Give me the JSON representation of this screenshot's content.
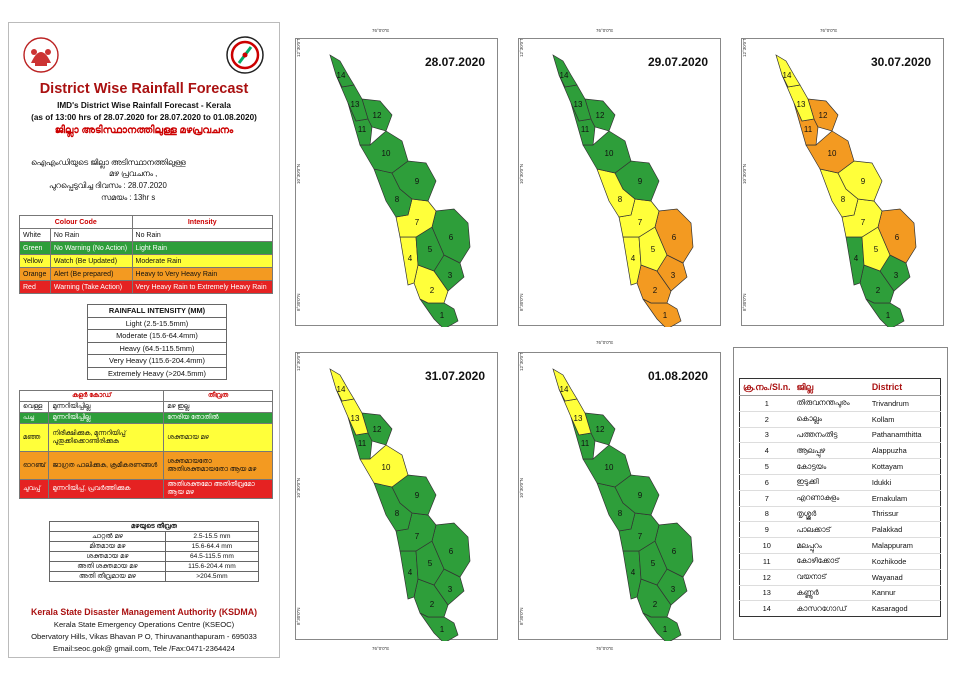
{
  "header": {
    "title": "District Wise Rainfall Forecast",
    "subtitle": "IMD's District Wise Rainfall Forecast - Kerala",
    "period": "(as of 13:00 hrs of 28.07.2020 for 28.07.2020  to 01.08.2020)",
    "mal_title": "ജില്ലാ അടിസ്ഥാനത്തിലുള്ള മഴപ്രവചനം",
    "mal_line1": "ഐഎംഡിയുടെ ജില്ലാ     അടിസ്ഥാനത്തിലുള്ള",
    "mal_line2": "മഴ പ്രവചനം  ,",
    "mal_line3": "പുറപ്പെടുവിച്ച          ദിവസം : 28.07.2020",
    "mal_line4": "സമയം : 13hr s"
  },
  "colour_code": {
    "headers": [
      "Colour Code",
      "Intensity"
    ],
    "rows": [
      {
        "colour": "White",
        "meaning": "No Rain",
        "intensity": "No Rain",
        "hex": "#ffffff"
      },
      {
        "colour": "Green",
        "meaning": "No Warning (No Action)",
        "intensity": "Light Rain",
        "hex": "#2e9e3a"
      },
      {
        "colour": "Yellow",
        "meaning": "Watch (Be Updated)",
        "intensity": "Moderate Rain",
        "hex": "#ffff3a"
      },
      {
        "colour": "Orange",
        "meaning": "Alert (Be prepared)",
        "intensity": "Heavy to Very Heavy Rain",
        "hex": "#f39a21"
      },
      {
        "colour": "Red",
        "meaning": "Warning (Take Action)",
        "intensity": "Very Heavy Rain to Extremely Heavy Rain",
        "hex": "#e52222"
      }
    ]
  },
  "rainfall_intensity": {
    "title": "RAINFALL INTENSITY (MM)",
    "rows": [
      "Light (2.5-15.5mm)",
      "Moderate (15.6-64.4mm)",
      "Heavy (64.5-115.5mm)",
      "Very Heavy (115.6-204.4mm)",
      "Extremely Heavy (>204.5mm)"
    ]
  },
  "mal_colour_code": {
    "headers": [
      "കളർ കോഡ്",
      "തീവ്രത"
    ],
    "rows": [
      {
        "c1": "വെള്ള",
        "c2": "മുന്നറിയിപ്പില്ല",
        "c3": "മഴ ഇല്ല"
      },
      {
        "c1": "പച്ച",
        "c2": "മുന്നറിയിപ്പില്ല",
        "c3": "നേരിയ തോതിൽ"
      },
      {
        "c1": "മഞ്ഞ",
        "c2": "നിരീക്ഷിക്കുക, മുന്നറിയിപ്പ് പുതുക്കിക്കൊണ്ടിരിക്കുക",
        "c3": "ശക്തമായ മഴ"
      },
      {
        "c1": "ഓറഞ്ച്",
        "c2": "ജാഗ്രത പാലിക്കുക, ക്രമീകരണങ്ങൾ",
        "c3": "ശക്തമായതോ അതിശക്തമായതോ ആയ മഴ"
      },
      {
        "c1": "ചുവപ്പ്",
        "c2": "മുന്നറിയിപ്പ്, പ്രവർത്തിക്കുക",
        "c3": "അതിശക്തമോ അതിതീവ്രമോ ആയ മഴ"
      }
    ]
  },
  "mal_rainfall_intensity": {
    "title": "മഴയുടെ തീവ്രത",
    "rows": [
      {
        "label": "ചാറ്റൽ മഴ",
        "value": "2.5-15.5 mm"
      },
      {
        "label": "മിതമായ മഴ",
        "value": "15.6-64.4 mm"
      },
      {
        "label": "ശക്തമായ മഴ",
        "value": "64.5-115.5 mm"
      },
      {
        "label": "അതി ശക്തമായ മഴ",
        "value": "115.6-204.4 mm"
      },
      {
        "label": "അതി തീവ്രമായ മഴ",
        "value": ">204.5mm"
      }
    ]
  },
  "footer": {
    "org": "Kerala State Disaster Management Authority (KSDMA)",
    "line1": "Kerala State Emergency Operations Centre (KSEOC)",
    "line2": "Obervatory Hills, Vikas Bhavan P O, Thiruvananthapuram - 695033",
    "line3": "Email:seoc.gok@ gmail.com, Tele /Fax:0471-2364424"
  },
  "colors": {
    "green": "#2e9e3a",
    "yellow": "#ffff3a",
    "orange": "#f39a21",
    "red": "#e52222",
    "white": "#ffffff"
  },
  "maps": [
    {
      "date": "28.07.2020",
      "colors": {
        "1": "green",
        "2": "yellow",
        "3": "green",
        "4": "yellow",
        "5": "green",
        "6": "green",
        "7": "yellow",
        "8": "green",
        "9": "green",
        "10": "green",
        "11": "green",
        "12": "green",
        "13": "green",
        "14": "green"
      }
    },
    {
      "date": "29.07.2020",
      "colors": {
        "1": "orange",
        "2": "orange",
        "3": "orange",
        "4": "yellow",
        "5": "yellow",
        "6": "orange",
        "7": "yellow",
        "8": "yellow",
        "9": "green",
        "10": "green",
        "11": "green",
        "12": "green",
        "13": "green",
        "14": "green"
      }
    },
    {
      "date": "30.07.2020",
      "colors": {
        "1": "green",
        "2": "green",
        "3": "green",
        "4": "green",
        "5": "yellow",
        "6": "orange",
        "7": "yellow",
        "8": "yellow",
        "9": "yellow",
        "10": "orange",
        "11": "orange",
        "12": "orange",
        "13": "yellow",
        "14": "yellow"
      }
    },
    {
      "date": "31.07.2020",
      "colors": {
        "1": "green",
        "2": "green",
        "3": "green",
        "4": "green",
        "5": "green",
        "6": "green",
        "7": "green",
        "8": "green",
        "9": "green",
        "10": "yellow",
        "11": "green",
        "12": "green",
        "13": "yellow",
        "14": "yellow"
      }
    },
    {
      "date": "01.08.2020",
      "colors": {
        "1": "green",
        "2": "green",
        "3": "green",
        "4": "green",
        "5": "green",
        "6": "green",
        "7": "green",
        "8": "green",
        "9": "green",
        "10": "green",
        "11": "green",
        "12": "green",
        "13": "yellow",
        "14": "yellow"
      }
    }
  ],
  "coord_labels": {
    "lon_76": "76°0'0\"E",
    "lat_12": "12°30'0\"N",
    "lat_10": "10°30'0\"N",
    "lat_8": "8°30'0\"N"
  },
  "districts": {
    "headers": [
      "ക്ര.നം./Sl.n.",
      "ജില്ല",
      "District"
    ],
    "rows": [
      {
        "no": "1",
        "mal": "തിരുവനന്തപുരം",
        "en": "Trivandrum"
      },
      {
        "no": "2",
        "mal": "കൊല്ലം",
        "en": "Kollam"
      },
      {
        "no": "3",
        "mal": "പത്തനംതിട്ട",
        "en": "Pathanamthitta"
      },
      {
        "no": "4",
        "mal": "ആലപ്പുഴ",
        "en": "Alappuzha"
      },
      {
        "no": "5",
        "mal": "കോട്ടയം",
        "en": "Kottayam"
      },
      {
        "no": "6",
        "mal": "ഇടുക്കി",
        "en": "Idukki"
      },
      {
        "no": "7",
        "mal": "എറണാകുളം",
        "en": "Ernakulam"
      },
      {
        "no": "8",
        "mal": "തൃശ്ശൂർ",
        "en": "Thrissur"
      },
      {
        "no": "9",
        "mal": "പാലക്കാട്",
        "en": "Palakkad"
      },
      {
        "no": "10",
        "mal": "മലപ്പുറം",
        "en": "Malappuram"
      },
      {
        "no": "11",
        "mal": "കോഴിക്കോട്",
        "en": "Kozhikode"
      },
      {
        "no": "12",
        "mal": "വയനാട്",
        "en": "Wayanad"
      },
      {
        "no": "13",
        "mal": "കണ്ണൂർ",
        "en": "Kannur"
      },
      {
        "no": "14",
        "mal": "കാസറഗോഡ്",
        "en": "Kasaragod"
      }
    ]
  }
}
